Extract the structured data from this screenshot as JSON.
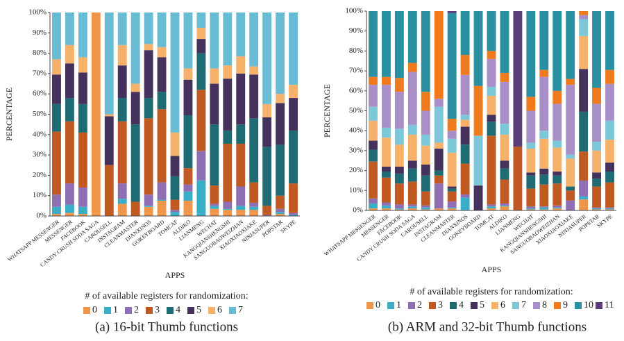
{
  "chart_data": [
    {
      "type": "stacked_bar",
      "caption": "(a) 16-bit Thumb functions",
      "xlabel": "APPS",
      "ylabel": "PERCENTAGE",
      "legend_title": "# of available registers for randomization:",
      "categories": [
        "WHATSAPP MESSENGER",
        "MESSENGER",
        "FACEBOOK",
        "CANDY CRUSH SODA SAGA",
        "CAROUSELL",
        "INSTAGRAM",
        "CLEANMASTER",
        "DIANXINOS",
        "GOKEYBOARD",
        "TOMCAT",
        "ALDIKO",
        "LIANMENG",
        "WECHAT",
        "KANGQIANSHENGSHI",
        "SANGUOBAOWEIZHAN",
        "XIAOXIAOXIAKE",
        "NINJASUPER",
        "POPSTAR",
        "SKYPE"
      ],
      "ylim": [
        0,
        100
      ],
      "yticks": [
        {
          "value": 0,
          "label": "0%"
        },
        {
          "value": 10,
          "label": "10%"
        },
        {
          "value": 20,
          "label": "20%"
        },
        {
          "value": 30,
          "label": "30%"
        },
        {
          "value": 40,
          "label": "40%"
        },
        {
          "value": 50,
          "label": "50%"
        },
        {
          "value": 60,
          "label": "60%"
        },
        {
          "value": 70,
          "label": "70%"
        },
        {
          "value": 80,
          "label": "80%"
        },
        {
          "value": 90,
          "label": "90%"
        },
        {
          "value": 100,
          "label": "100%"
        }
      ],
      "grid": false,
      "series": [
        {
          "name": "0",
          "color": "#f0964b",
          "values": [
            1,
            1.5,
            1,
            100,
            0,
            6,
            0,
            4.5,
            7.5,
            0,
            7.5,
            0,
            3.5,
            3,
            3,
            3,
            0,
            1,
            0
          ]
        },
        {
          "name": "1",
          "color": "#3aaec6",
          "values": [
            3.5,
            4,
            3.5,
            0,
            0,
            2.5,
            0,
            0.5,
            0.5,
            2,
            4.5,
            17.5,
            1.5,
            0.5,
            2,
            1.5,
            0,
            1,
            0.5
          ]
        },
        {
          "name": "2",
          "color": "#8e6fb3",
          "values": [
            6,
            10.5,
            9.5,
            0,
            0,
            7.5,
            0,
            5.5,
            8.5,
            1,
            3.5,
            14.5,
            1,
            3.5,
            9.5,
            2,
            0.5,
            1.5,
            1
          ]
        },
        {
          "name": "3",
          "color": "#c05a22",
          "values": [
            31,
            30.5,
            27,
            0,
            25,
            30.5,
            7,
            37.5,
            36,
            5,
            8,
            30,
            9,
            28.5,
            21,
            10,
            4.5,
            6.5,
            14.5
          ]
        },
        {
          "name": "4",
          "color": "#1f6b73",
          "values": [
            13.5,
            11.5,
            14,
            0,
            0,
            11.5,
            38,
            10,
            8.5,
            11.5,
            26,
            18,
            30,
            6.5,
            9.5,
            31.5,
            29,
            25,
            26
          ]
        },
        {
          "name": "5",
          "color": "#45325c",
          "values": [
            14.5,
            17,
            15.5,
            0,
            24,
            16,
            16,
            23.5,
            17,
            10,
            17.5,
            7,
            20,
            25.5,
            25,
            21.5,
            14.5,
            20.5,
            16
          ]
        },
        {
          "name": "6",
          "color": "#f6b26b",
          "values": [
            7.5,
            9,
            7.5,
            0,
            1,
            10,
            4,
            3,
            5,
            11.5,
            5.5,
            5.5,
            7.5,
            6.5,
            8.5,
            4,
            6.5,
            4.5,
            6.5
          ]
        },
        {
          "name": "7",
          "color": "#68bcd4",
          "values": [
            23,
            16,
            22,
            0,
            50,
            16,
            35,
            15.5,
            17,
            59,
            27.5,
            7.5,
            27.5,
            26,
            21.5,
            26.5,
            45,
            40,
            35.5
          ]
        }
      ]
    },
    {
      "type": "stacked_bar",
      "caption": "(b) ARM and 32-bit Thumb functions",
      "xlabel": "APPS",
      "ylabel": "PERCENTAGE",
      "legend_title": "# of available registers for randomization:",
      "categories": [
        "WHATSAPP MESSENGER",
        "MESSENGER",
        "FACEBOOK",
        "CANDY CRUSH SODA SAGA",
        "CAROUSELL",
        "INSTAGRAM",
        "CLEANMASTER",
        "DIANXINOS",
        "GOKEYBOARD",
        "TOMCAT",
        "ALDIKO",
        "LIANMENG",
        "WECHAT",
        "KANGQIANSHENGSHI",
        "SANGUOBAOWEIZHAN",
        "XIAOXIAOXIAKE",
        "NINJASUPER",
        "POPSTAR",
        "SKYPE"
      ],
      "ylim": [
        0,
        100
      ],
      "yticks": [
        {
          "value": 0,
          "label": "0%"
        },
        {
          "value": 10,
          "label": "10%"
        },
        {
          "value": 20,
          "label": "20%"
        },
        {
          "value": 30,
          "label": "30%"
        },
        {
          "value": 40,
          "label": "40%"
        },
        {
          "value": 50,
          "label": "50%"
        },
        {
          "value": 60,
          "label": "60%"
        },
        {
          "value": 70,
          "label": "70%"
        },
        {
          "value": 80,
          "label": "80%"
        },
        {
          "value": 90,
          "label": "90%"
        },
        {
          "value": 100,
          "label": "100%"
        }
      ],
      "grid": false,
      "series": [
        {
          "name": "0",
          "color": "#f0964b",
          "values": [
            1,
            1,
            0.5,
            1,
            0.5,
            1,
            1,
            0,
            0,
            1,
            2,
            0,
            0.5,
            0.5,
            1,
            0,
            5.5,
            0.5,
            0.5
          ]
        },
        {
          "name": "1",
          "color": "#3aaec6",
          "values": [
            2.5,
            1.5,
            0.5,
            1,
            1,
            0,
            0.5,
            6.5,
            0,
            1,
            0.5,
            0,
            0.5,
            1,
            0.5,
            0,
            1.5,
            0.5,
            0.5
          ]
        },
        {
          "name": "2",
          "color": "#8e6fb3",
          "values": [
            2.5,
            1.5,
            2,
            1,
            1,
            12.5,
            3,
            1.5,
            0,
            1,
            1,
            0,
            1,
            0.5,
            1,
            5,
            8,
            0.5,
            0.5
          ]
        },
        {
          "name": "3",
          "color": "#c05a22",
          "values": [
            18.5,
            12.5,
            10.5,
            11.5,
            7,
            4,
            5,
            15.5,
            0,
            34.5,
            12,
            32,
            9,
            11,
            11,
            5,
            14.5,
            10.5,
            12.5
          ]
        },
        {
          "name": "4",
          "color": "#1f6b73",
          "values": [
            6,
            3,
            5,
            6.5,
            8,
            2.5,
            1.5,
            9.5,
            0,
            7,
            5.5,
            0,
            6.5,
            5,
            4,
            2,
            20,
            4,
            5.5
          ]
        },
        {
          "name": "5",
          "color": "#45325c",
          "values": [
            4.5,
            2.5,
            3.5,
            4,
            5.5,
            11,
            1,
            9,
            12.5,
            3.5,
            4,
            0,
            1.5,
            3,
            2,
            0,
            21.5,
            3,
            4.5
          ]
        },
        {
          "name": "6",
          "color": "#f6b26b",
          "values": [
            10,
            14.5,
            11,
            13,
            9.5,
            3,
            17,
            3.5,
            0,
            9.5,
            13,
            0,
            12,
            15,
            12,
            14,
            16.5,
            11,
            11.5
          ]
        },
        {
          "name": "7",
          "color": "#7cc7d8",
          "values": [
            7,
            5,
            8,
            5,
            5.5,
            18,
            7,
            2.5,
            25,
            4.5,
            5.5,
            0,
            3,
            4,
            3.5,
            2,
            8.5,
            4.5,
            9.5
          ]
        },
        {
          "name": "8",
          "color": "#a88fc8",
          "values": [
            11,
            21.5,
            18.5,
            26.5,
            12,
            4,
            4,
            20,
            0,
            14,
            21,
            0,
            16,
            27,
            18.5,
            35,
            2,
            19,
            18.5
          ]
        },
        {
          "name": "9",
          "color": "#f07a1e",
          "values": [
            4,
            4,
            7,
            4.5,
            9.5,
            44,
            6,
            10,
            25,
            4,
            4.5,
            0,
            7,
            3.5,
            6.5,
            3,
            2,
            8,
            7
          ]
        },
        {
          "name": "10",
          "color": "#2a8fa0",
          "values": [
            33,
            33,
            33.5,
            26,
            40.5,
            0,
            53,
            22,
            37.5,
            20,
            31,
            0,
            43,
            29.5,
            40,
            34,
            0,
            38.5,
            29.5
          ]
        },
        {
          "name": "11",
          "color": "#5a3d78",
          "values": [
            0,
            0,
            0,
            0,
            0,
            0,
            1,
            0,
            0,
            0,
            0,
            68,
            0,
            0,
            0,
            0,
            0,
            0,
            0
          ]
        }
      ]
    }
  ]
}
